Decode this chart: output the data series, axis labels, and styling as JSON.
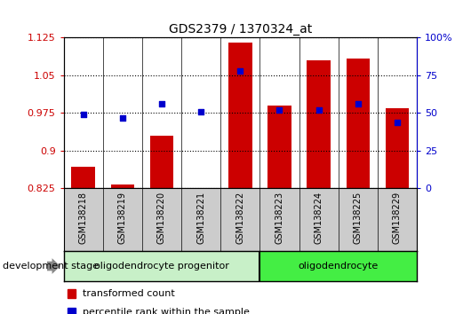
{
  "title": "GDS2379 / 1370324_at",
  "samples": [
    "GSM138218",
    "GSM138219",
    "GSM138220",
    "GSM138221",
    "GSM138222",
    "GSM138223",
    "GSM138224",
    "GSM138225",
    "GSM138229"
  ],
  "transformed_count": [
    0.868,
    0.833,
    0.93,
    0.825,
    1.115,
    0.99,
    1.08,
    1.083,
    0.984
  ],
  "percentile_rank": [
    49,
    47,
    56,
    51,
    78,
    52,
    52,
    56,
    44
  ],
  "ylim_left": [
    0.825,
    1.125
  ],
  "ylim_right": [
    0,
    100
  ],
  "yticks_left": [
    0.825,
    0.9,
    0.975,
    1.05,
    1.125
  ],
  "yticks_right": [
    0,
    25,
    50,
    75,
    100
  ],
  "ytick_labels_left": [
    "0.825",
    "0.9",
    "0.975",
    "1.05",
    "1.125"
  ],
  "ytick_labels_right": [
    "0",
    "25",
    "50",
    "75",
    "100%"
  ],
  "bar_color": "#cc0000",
  "dot_color": "#0000cc",
  "bar_bottom": 0.825,
  "group1_label": "oligodendrocyte progenitor",
  "group1_count": 5,
  "group1_color": "#c8f0c8",
  "group2_label": "oligodendrocyte",
  "group2_count": 4,
  "group2_color": "#44ee44",
  "xlabel_left": "development stage",
  "legend_items": [
    {
      "label": "transformed count",
      "color": "#cc0000"
    },
    {
      "label": "percentile rank within the sample",
      "color": "#0000cc"
    }
  ],
  "tick_label_area_color": "#cccccc",
  "bg_color": "#ffffff"
}
